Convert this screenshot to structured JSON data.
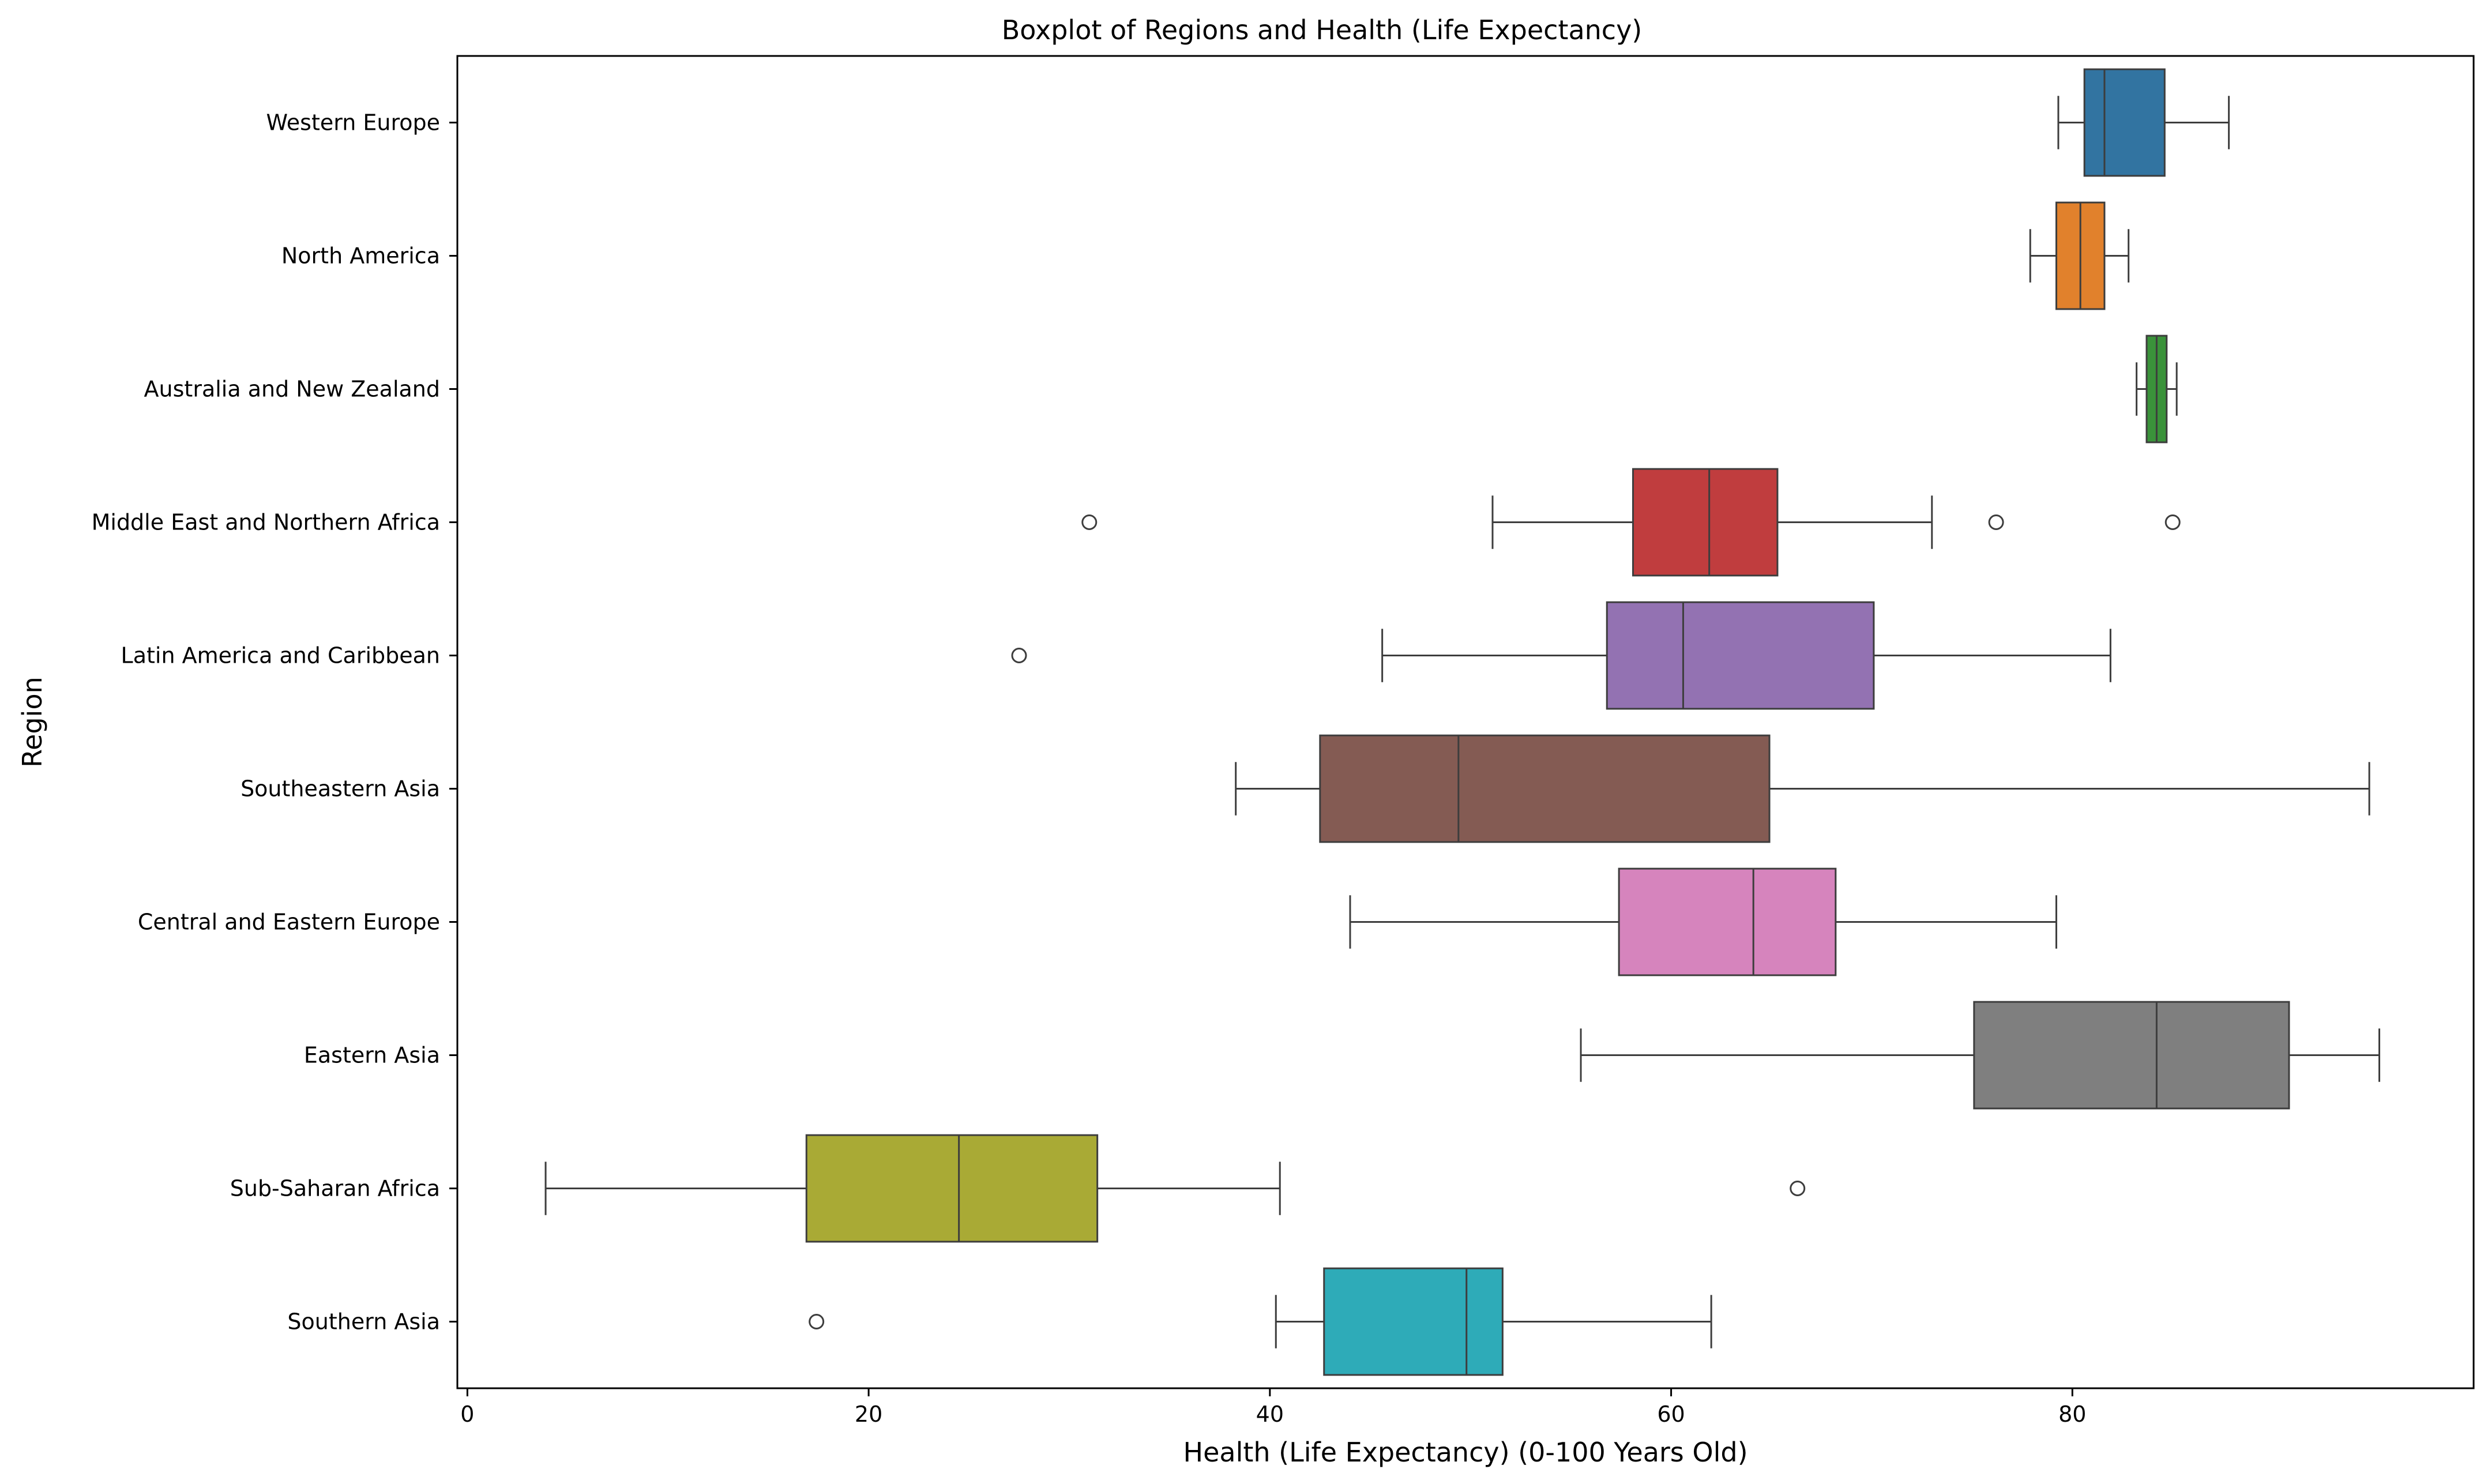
{
  "chart_data": {
    "type": "boxplot",
    "title": "Boxplot of Regions and Health (Life Expectancy)",
    "xlabel": "Health (Life Expectancy) (0-100 Years Old)",
    "ylabel": "Region",
    "xlim": [
      -0.5,
      100
    ],
    "xticks": [
      0,
      20,
      40,
      60,
      80
    ],
    "grid": false,
    "legend": "none",
    "categories": [
      "Western Europe",
      "North America",
      "Australia and New Zealand",
      "Middle East and Northern Africa",
      "Latin America and Caribbean",
      "Southeastern Asia",
      "Central and Eastern Europe",
      "Eastern Asia",
      "Sub-Saharan Africa",
      "Southern Asia"
    ],
    "boxes": [
      {
        "name": "Western Europe",
        "color": "#3274a1",
        "whisker_low": 79.3,
        "q1": 80.6,
        "median": 81.6,
        "q3": 84.6,
        "whisker_high": 87.8,
        "outliers": []
      },
      {
        "name": "North America",
        "color": "#e1812c",
        "whisker_low": 77.9,
        "q1": 79.2,
        "median": 80.4,
        "q3": 81.6,
        "whisker_high": 82.8,
        "outliers": []
      },
      {
        "name": "Australia and New Zealand",
        "color": "#3a923a",
        "whisker_low": 83.2,
        "q1": 83.7,
        "median": 84.2,
        "q3": 84.7,
        "whisker_high": 85.2,
        "outliers": []
      },
      {
        "name": "Middle East and Northern Africa",
        "color": "#c03d3e",
        "whisker_low": 51.1,
        "q1": 58.1,
        "median": 61.9,
        "q3": 65.3,
        "whisker_high": 73.0,
        "outliers": [
          31.0,
          76.2,
          85.0
        ]
      },
      {
        "name": "Latin America and Caribbean",
        "color": "#9372b2",
        "whisker_low": 45.6,
        "q1": 56.8,
        "median": 60.6,
        "q3": 70.1,
        "whisker_high": 81.9,
        "outliers": [
          27.5
        ]
      },
      {
        "name": "Southeastern Asia",
        "color": "#845b53",
        "whisker_low": 38.3,
        "q1": 42.5,
        "median": 49.4,
        "q3": 64.9,
        "whisker_high": 94.8,
        "outliers": []
      },
      {
        "name": "Central and Eastern Europe",
        "color": "#d684bd",
        "whisker_low": 44.0,
        "q1": 57.4,
        "median": 64.1,
        "q3": 68.2,
        "whisker_high": 79.2,
        "outliers": []
      },
      {
        "name": "Eastern Asia",
        "color": "#7f7f7f",
        "whisker_low": 55.5,
        "q1": 75.1,
        "median": 84.2,
        "q3": 90.8,
        "whisker_high": 95.3,
        "outliers": []
      },
      {
        "name": "Sub-Saharan Africa",
        "color": "#a9aa35",
        "whisker_low": 3.9,
        "q1": 16.9,
        "median": 24.5,
        "q3": 31.4,
        "whisker_high": 40.5,
        "outliers": [
          66.3
        ]
      },
      {
        "name": "Southern Asia",
        "color": "#2eabb8",
        "whisker_low": 40.3,
        "q1": 42.7,
        "median": 49.8,
        "q3": 51.6,
        "whisker_high": 62.0,
        "outliers": [
          17.4
        ]
      }
    ]
  }
}
